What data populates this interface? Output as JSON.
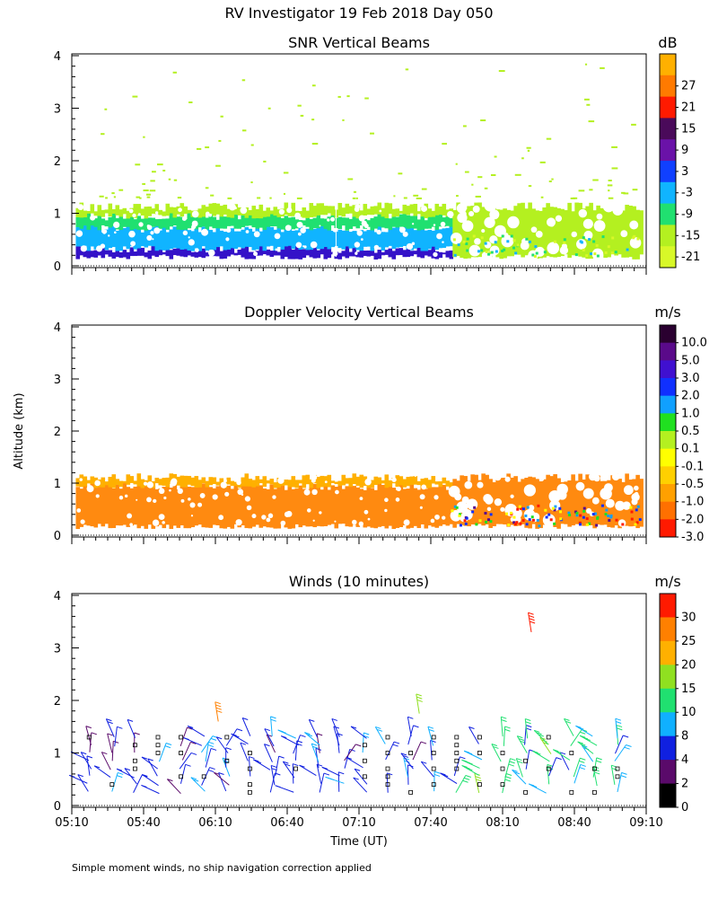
{
  "page": {
    "title": "RV Investigator  19 Feb 2018 Day 050",
    "ylabel": "Altitude (km)",
    "xlabel": "Time (UT)",
    "footnote": "Simple moment winds, no ship navigation correction applied",
    "x_ticks": [
      "05:10",
      "05:40",
      "06:10",
      "06:40",
      "07:10",
      "07:40",
      "08:10",
      "08:40",
      "09:10"
    ]
  },
  "chart_data": [
    {
      "type": "heatmap",
      "title": "SNR Vertical Beams",
      "ylabel": "Altitude (km)",
      "ylim": [
        0,
        4
      ],
      "y_ticks": [
        "0",
        "1",
        "2",
        "3",
        "4"
      ],
      "colorbar": {
        "unit": "dB",
        "labels": [
          "27",
          "21",
          "15",
          "9",
          "3",
          "-3",
          "-9",
          "-15",
          "-21"
        ],
        "colors": [
          "#ffb000",
          "#ff7a00",
          "#ff1a00",
          "#4a0a5a",
          "#6a12a8",
          "#1040ff",
          "#10b4ff",
          "#20e070",
          "#b4f020",
          "#d8f828"
        ]
      },
      "layers": [
        {
          "alt": [
            0.17,
            0.33
          ],
          "color": "#3412c8",
          "t_end": 0.663
        },
        {
          "alt": [
            0.33,
            0.72
          ],
          "color": "#10b4ff",
          "t_end": 0.663
        },
        {
          "alt": [
            0.72,
            0.95
          ],
          "color": "#20e070",
          "t_end": 0.663
        },
        {
          "alt": [
            0.95,
            1.12
          ],
          "color": "#b4f020",
          "t_end": 0.663
        },
        {
          "alt": [
            0.17,
            1.12
          ],
          "color": "#b4f020",
          "t_start": 0.663,
          "t_end": 0.993
        }
      ]
    },
    {
      "type": "heatmap",
      "title": "Doppler Velocity Vertical Beams",
      "ylabel": "Altitude (km)",
      "ylim": [
        0,
        4
      ],
      "y_ticks": [
        "0",
        "1",
        "2",
        "3",
        "4"
      ],
      "colorbar": {
        "unit": "m/s",
        "labels": [
          "10.0",
          "5.0",
          "3.0",
          "2.0",
          "1.0",
          "0.5",
          "0.1",
          "-0.1",
          "-0.5",
          "-1.0",
          "-2.0",
          "-3.0"
        ],
        "colors": [
          "#2a0030",
          "#5a0a8a",
          "#4010d0",
          "#1030ff",
          "#10a0ff",
          "#20e020",
          "#b4f020",
          "#ffff00",
          "#ffd000",
          "#ffa000",
          "#ff7000",
          "#ff1a00"
        ]
      },
      "layers": [
        {
          "alt": [
            0.17,
            0.95
          ],
          "color": "#ff8a10",
          "t_end": 0.663
        },
        {
          "alt": [
            0.95,
            1.1
          ],
          "color": "#ffb000",
          "t_end": 0.663
        },
        {
          "alt": [
            0.17,
            1.1
          ],
          "color": "#ff8a10",
          "t_start": 0.663,
          "t_end": 0.993
        }
      ]
    },
    {
      "type": "scatter",
      "title": "Winds (10 minutes)",
      "ylabel": "Altitude (km)",
      "ylim": [
        0,
        4
      ],
      "y_ticks": [
        "0",
        "1",
        "2",
        "3",
        "4"
      ],
      "colorbar": {
        "unit": "m/s",
        "labels": [
          "30",
          "25",
          "20",
          "15",
          "10",
          "8",
          "4",
          "2",
          "0"
        ],
        "colors": [
          "#ff1a00",
          "#ff8000",
          "#ffb000",
          "#90e020",
          "#20e070",
          "#10b0ff",
          "#1020e0",
          "#5a0a6a",
          "#000000"
        ]
      },
      "columns_time_fraction": [
        0.03,
        0.07,
        0.11,
        0.15,
        0.19,
        0.23,
        0.27,
        0.31,
        0.35,
        0.39,
        0.43,
        0.47,
        0.51,
        0.55,
        0.59,
        0.63,
        0.67,
        0.71,
        0.75,
        0.79,
        0.83,
        0.87,
        0.91,
        0.95
      ],
      "levels_km": [
        0.25,
        0.4,
        0.55,
        0.7,
        0.85,
        1.0,
        1.15,
        1.3
      ],
      "extra": [
        {
          "t": 0.255,
          "alt": 1.6,
          "speed": 28
        },
        {
          "t": 0.605,
          "alt": 1.75,
          "speed": 15
        },
        {
          "t": 0.8,
          "alt": 3.3,
          "speed": 31
        }
      ]
    }
  ]
}
